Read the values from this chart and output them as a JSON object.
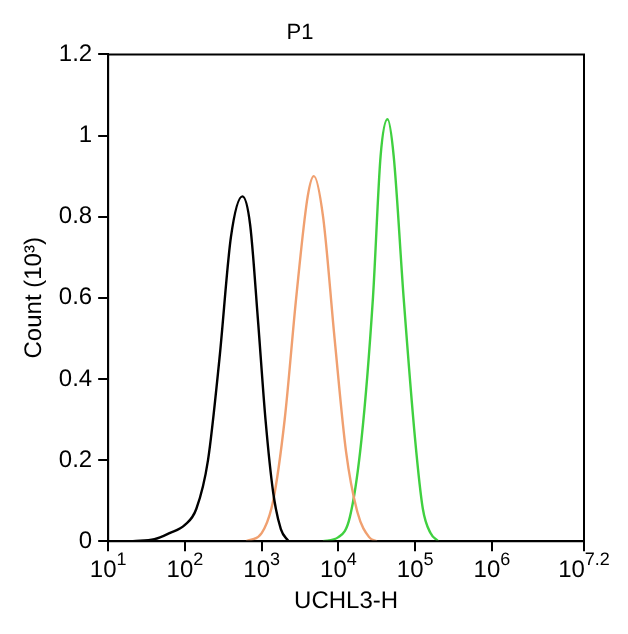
{
  "chart_data": {
    "type": "line",
    "title": "P1",
    "xlabel": "UCHL3-H",
    "ylabel": "Count (10³)",
    "log": "x",
    "xlim": [
      10,
      15848932
    ],
    "xticks": [
      {
        "value": 10,
        "label": "10$^{1}$"
      },
      {
        "value": 100,
        "label": "10$^{2}$"
      },
      {
        "value": 1000,
        "label": "10$^{3}$"
      },
      {
        "value": 10000,
        "label": "10$^{4}$"
      },
      {
        "value": 100000,
        "label": "10$^{5}$"
      },
      {
        "value": 1000000,
        "label": "10$^{6}$"
      },
      {
        "value": 15848932,
        "label": "10$^{7.2}$"
      }
    ],
    "ylim": [
      0,
      1.2
    ],
    "yticks": [
      0,
      0.2,
      0.4,
      0.6,
      0.8,
      1,
      1.2
    ],
    "grid": false,
    "legend": false,
    "marker": "none",
    "line_style": "solid",
    "series": [
      {
        "color": "#000000",
        "x": [
          21,
          40,
          63,
          100,
          141,
          200,
          282,
          398,
          562,
          708,
          891,
          1122,
          1413,
          1778,
          2239
        ],
        "values": [
          0,
          0.005,
          0.02,
          0.04,
          0.08,
          0.2,
          0.45,
          0.75,
          0.85,
          0.78,
          0.55,
          0.3,
          0.12,
          0.03,
          0
        ]
      },
      {
        "color": "#f0a070",
        "x": [
          631,
          1000,
          1413,
          1995,
          2818,
          3981,
          4786,
          6310,
          8913,
          12589,
          17783,
          25119,
          31623
        ],
        "values": [
          0,
          0.02,
          0.1,
          0.3,
          0.6,
          0.85,
          0.9,
          0.8,
          0.5,
          0.22,
          0.07,
          0.01,
          0
        ]
      },
      {
        "color": "#40d040",
        "x": [
          6310,
          10000,
          14125,
          19953,
          28184,
          35481,
          43652,
          52481,
          70795,
          100000,
          125893,
          158489,
          199526
        ],
        "values": [
          0,
          0.01,
          0.06,
          0.25,
          0.6,
          0.95,
          1.04,
          0.95,
          0.6,
          0.25,
          0.08,
          0.02,
          0
        ]
      }
    ]
  }
}
